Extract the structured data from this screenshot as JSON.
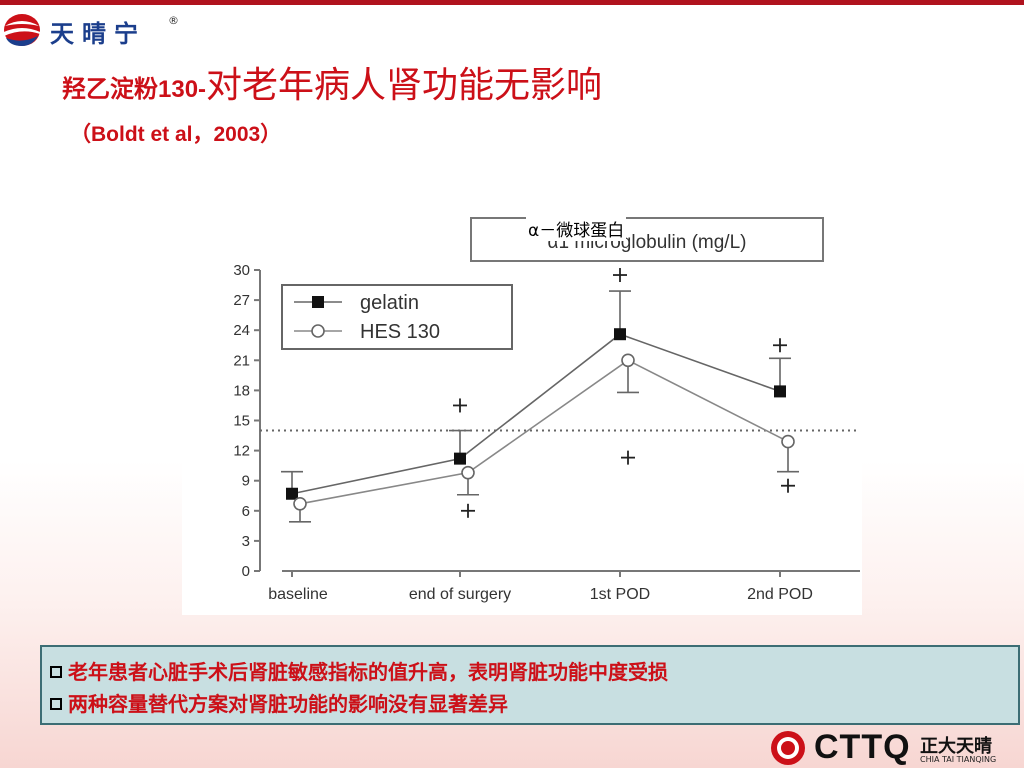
{
  "logo": {
    "text": "天晴宁",
    "reg": "®"
  },
  "title": {
    "part1": "羟乙淀粉130-",
    "part2": "对老年病人肾功能无影响"
  },
  "subtitle": "（Boldt et al，2003）",
  "annotation": "α－微球蛋白",
  "notes": [
    "老年患者心脏手术后肾脏敏感指标的值升高，表明肾脏功能中度受损",
    "两种容量替代方案对肾脏功能的影响没有显著差异"
  ],
  "footer": {
    "brand": "CTTQ",
    "cn": "正大天晴",
    "en": "CHIA TAI TIANQING"
  },
  "colors": {
    "accent_red": "#cc1018",
    "note_bg": "#c8dfe1",
    "note_border": "#3c6d74",
    "logo_blue": "#1b3e8c"
  },
  "chart_data": {
    "type": "line",
    "title": "α1 microglobulin (mg/L)",
    "categories": [
      "baseline",
      "end of surgery",
      "1st POD",
      "2nd POD"
    ],
    "ylim": [
      0,
      30
    ],
    "yticks": [
      0,
      3,
      6,
      9,
      12,
      15,
      18,
      21,
      24,
      27,
      30
    ],
    "reference_line": 14,
    "legend_position": "top-left",
    "grid": false,
    "series": [
      {
        "name": "gelatin",
        "marker": "filled-square",
        "values": [
          7.7,
          11.2,
          23.6,
          17.9
        ],
        "error_up": [
          9.9,
          14.0,
          27.9,
          21.2
        ]
      },
      {
        "name": "HES 130",
        "marker": "open-circle",
        "values": [
          6.7,
          9.8,
          21.0,
          12.9
        ],
        "error_down": [
          4.9,
          7.6,
          17.8,
          9.9
        ]
      }
    ],
    "plus_annotations": [
      {
        "category_index": 1,
        "y": 16.5
      },
      {
        "category_index": 1,
        "y": 6.0
      },
      {
        "category_index": 2,
        "y": 29.5
      },
      {
        "category_index": 2,
        "y": 11.3
      },
      {
        "category_index": 3,
        "y": 22.5
      },
      {
        "category_index": 3,
        "y": 8.5
      }
    ]
  }
}
